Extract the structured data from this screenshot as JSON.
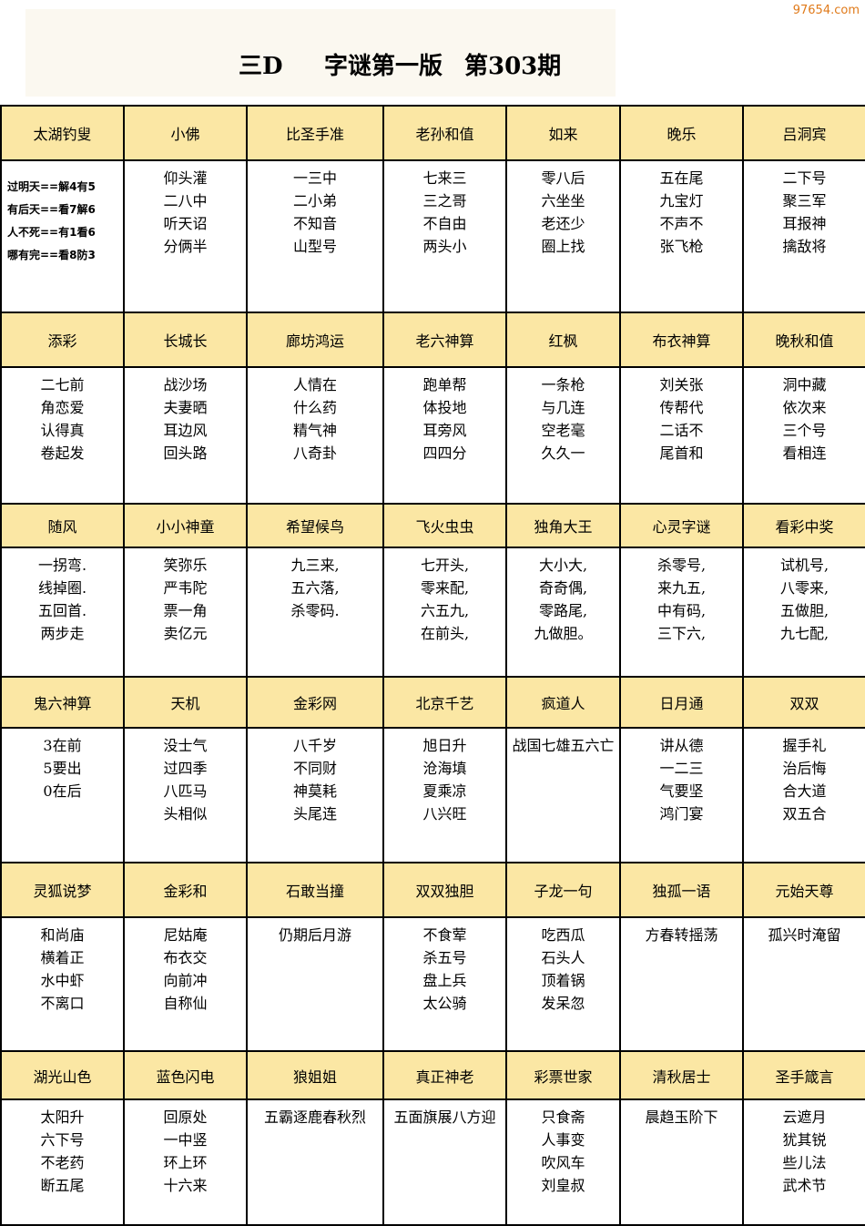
{
  "watermark": "97654.com",
  "header": {
    "title_left": "三D",
    "title_mid": "字谜第一版",
    "title_right": "第303期"
  },
  "groups": [
    {
      "names": [
        "太湖钓叟",
        "小佛",
        "比圣手准",
        "老孙和值",
        "如来",
        "晚乐",
        "吕洞宾"
      ],
      "cells": [
        [
          "过明天==解4有5",
          "有后天==看7解6",
          "人不死==有1看6",
          "哪有完==看8防3"
        ],
        [
          "仰头灌",
          "二八中",
          "听天诏",
          "分俩半"
        ],
        [
          "一三中",
          "二小弟",
          "不知音",
          "山型号"
        ],
        [
          "七来三",
          "三之哥",
          "不自由",
          "两头小"
        ],
        [
          "零八后",
          "六坐坐",
          "老还少",
          "圈上找"
        ],
        [
          "五在尾",
          "九宝灯",
          "不声不",
          "张飞枪"
        ],
        [
          "二下号",
          "聚三军",
          "耳报神",
          "擒敌将"
        ]
      ]
    },
    {
      "names": [
        "添彩",
        "长城长",
        "廊坊鸿运",
        "老六神算",
        "红枫",
        "布衣神算",
        "晚秋和值"
      ],
      "cells": [
        [
          "二七前",
          "角恋爱",
          "认得真",
          "卷起发"
        ],
        [
          "战沙场",
          "夫妻晒",
          "耳边风",
          "回头路"
        ],
        [
          "人情在",
          "什么药",
          "精气神",
          "八奇卦"
        ],
        [
          "跑单帮",
          "体投地",
          "耳旁风",
          "四四分"
        ],
        [
          "一条枪",
          "与几连",
          "空老毫",
          "久久一"
        ],
        [
          "刘关张",
          "传帮代",
          "二话不",
          "尾首和"
        ],
        [
          "洞中藏",
          "依次来",
          "三个号",
          "看相连"
        ]
      ]
    },
    {
      "names": [
        "随风",
        "小小神童",
        "希望候鸟",
        "飞火虫虫",
        "独角大王",
        "心灵字谜",
        "看彩中奖"
      ],
      "cells": [
        [
          "一拐弯.",
          "线掉圈.",
          "五回首.",
          "两步走"
        ],
        [
          "笑弥乐",
          "严韦陀",
          "票一角",
          "卖亿元"
        ],
        [
          "九三来,",
          "五六落,",
          "杀零码."
        ],
        [
          "七开头,",
          "零来配,",
          "六五九,",
          "在前头,"
        ],
        [
          "大小大,",
          "奇奇偶,",
          "零路尾,",
          "九做胆。"
        ],
        [
          "杀零号,",
          "来九五,",
          "中有码,",
          "三下六,"
        ],
        [
          "试机号,",
          "八零来,",
          "五做胆,",
          "九七配,"
        ]
      ]
    },
    {
      "names": [
        "鬼六神算",
        "天机",
        "金彩网",
        "北京千艺",
        "疯道人",
        "日月通",
        "双双"
      ],
      "cells": [
        [
          "3在前",
          "5要出",
          "0在后"
        ],
        [
          "没士气",
          "过四季",
          "八匹马",
          "头相似"
        ],
        [
          "八千岁",
          "不同财",
          "神莫耗",
          "头尾连"
        ],
        [
          "旭日升",
          "沧海填",
          "夏乘凉",
          "八兴旺"
        ],
        [
          "战国七雄五六亡"
        ],
        [
          "讲从德",
          "一二三",
          "气要坚",
          "鸿门宴"
        ],
        [
          "握手礼",
          "治后悔",
          "合大道",
          "双五合"
        ]
      ]
    },
    {
      "names": [
        "灵狐说梦",
        "金彩和",
        "石敢当撞",
        "双双独胆",
        "子龙一句",
        "独孤一语",
        "元始天尊"
      ],
      "cells": [
        [
          "和尚庙",
          "横着正",
          "水中虾",
          "不离口"
        ],
        [
          "尼姑庵",
          "布衣交",
          "向前冲",
          "自称仙"
        ],
        [
          "仍期后月游"
        ],
        [
          "不食荤",
          "杀五号",
          "盘上兵",
          "太公骑"
        ],
        [
          "吃西瓜",
          "石头人",
          "顶着锅",
          "发呆忽"
        ],
        [
          "方春转摇荡"
        ],
        [
          "孤兴时淹留"
        ]
      ]
    },
    {
      "names": [
        "湖光山色",
        "蓝色闪电",
        "狼姐姐",
        "真正神老",
        "彩票世家",
        "清秋居士",
        "圣手箴言"
      ],
      "cells": [
        [
          "太阳升",
          "六下号",
          "不老药",
          "断五尾"
        ],
        [
          "回原处",
          "一中竖",
          "环上环",
          "十六来"
        ],
        [
          "五霸逐鹿春秋烈"
        ],
        [
          "五面旗展八方迎"
        ],
        [
          "只食斋",
          "人事变",
          "吹风车",
          "刘皇叔"
        ],
        [
          "晨趋玉阶下"
        ],
        [
          "云遮月",
          "犹其锐",
          "些儿法",
          "武术节"
        ]
      ]
    }
  ]
}
